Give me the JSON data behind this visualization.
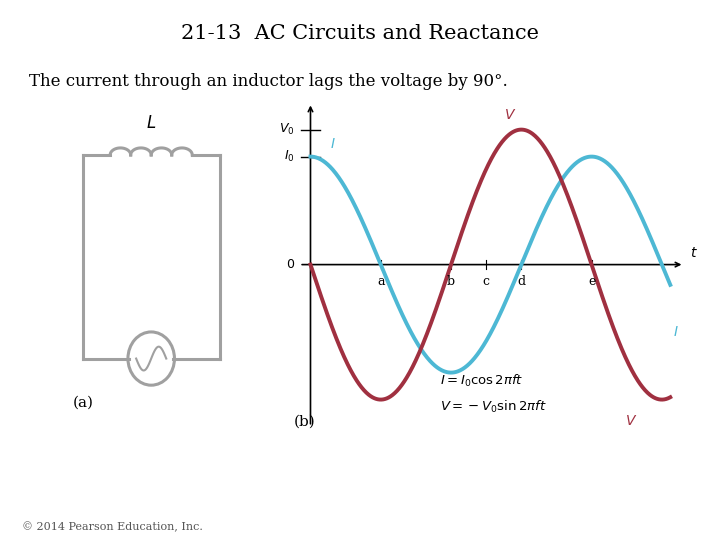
{
  "title": "21-13  AC Circuits and Reactance",
  "subtitle": "The current through an inductor lags the voltage by 90°.",
  "copyright": "© 2014 Pearson Education, Inc.",
  "curve_I_color": "#4db8d4",
  "curve_V_color": "#a03040",
  "circuit_color": "#a0a0a0",
  "text_color": "#000000",
  "bg_color": "#ffffff",
  "eq1": "$I = I_0 \\cos 2\\pi ft$",
  "eq2": "$V = -V_0 \\sin 2\\pi ft$",
  "label_a": "(a)",
  "label_b": "(b)"
}
